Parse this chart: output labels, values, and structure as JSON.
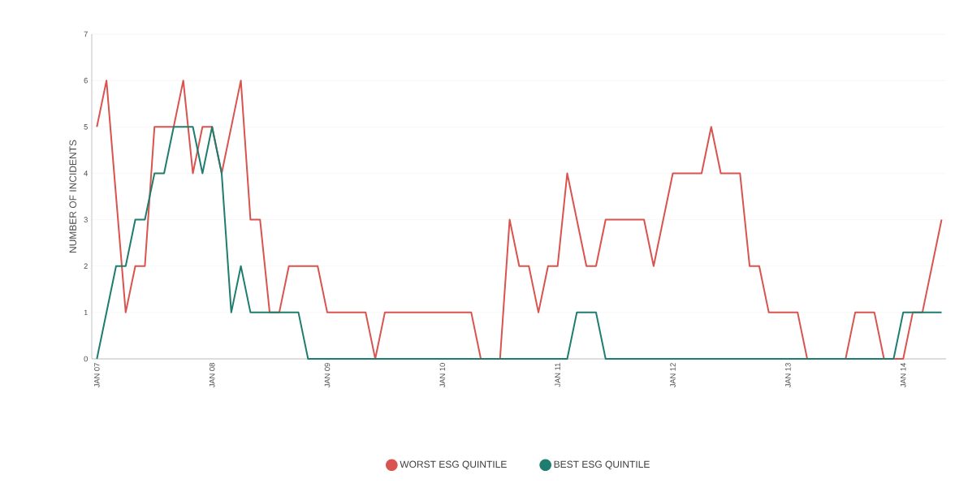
{
  "chart_data": {
    "type": "line",
    "ylabel": "NUMBER OF INCIDENTS",
    "xlim": [
      "2006-12-15",
      "2014-05-15"
    ],
    "ylim": [
      0,
      7
    ],
    "yticks": [
      0,
      1,
      2,
      3,
      4,
      5,
      6,
      7
    ],
    "xticks": [
      {
        "value": "2007-01",
        "label": "JAN 07"
      },
      {
        "value": "2008-01",
        "label": "JAN 08"
      },
      {
        "value": "2009-01",
        "label": "JAN 09"
      },
      {
        "value": "2010-01",
        "label": "JAN 10"
      },
      {
        "value": "2011-01",
        "label": "JAN 11"
      },
      {
        "value": "2012-01",
        "label": "JAN 12"
      },
      {
        "value": "2013-01",
        "label": "JAN 13"
      },
      {
        "value": "2014-01",
        "label": "JAN 14"
      }
    ],
    "grid": "y",
    "legend": "bottom",
    "marker": "none",
    "line_style": "solid",
    "series": [
      {
        "name": "WORST ESG QUINTILE",
        "color": "#d9534f",
        "x": [
          "2007-01",
          "2007-02",
          "2007-04",
          "2007-05",
          "2007-06",
          "2007-07",
          "2007-09",
          "2007-10",
          "2007-11",
          "2007-12",
          "2008-01",
          "2008-02",
          "2008-04",
          "2008-05",
          "2008-06",
          "2008-07",
          "2008-08",
          "2008-09",
          "2008-12",
          "2009-01",
          "2009-05",
          "2009-06",
          "2009-07",
          "2010-04",
          "2010-05",
          "2010-07",
          "2010-08",
          "2010-09",
          "2010-10",
          "2010-11",
          "2010-12",
          "2011-01",
          "2011-02",
          "2011-04",
          "2011-05",
          "2011-06",
          "2011-10",
          "2011-11",
          "2012-01",
          "2012-04",
          "2012-05",
          "2012-06",
          "2012-08",
          "2012-09",
          "2012-10",
          "2012-11",
          "2013-02",
          "2013-03",
          "2013-07",
          "2013-08",
          "2013-10",
          "2013-11",
          "2014-01",
          "2014-02",
          "2014-03",
          "2014-05"
        ],
        "values": [
          5,
          6,
          1,
          2,
          2,
          5,
          5,
          6,
          4,
          5,
          5,
          4,
          6,
          3,
          3,
          1,
          1,
          2,
          2,
          1,
          1,
          0,
          1,
          1,
          0,
          0,
          3,
          2,
          2,
          1,
          2,
          2,
          4,
          2,
          2,
          3,
          3,
          2,
          4,
          4,
          5,
          4,
          4,
          2,
          2,
          1,
          1,
          0,
          0,
          1,
          1,
          0,
          0,
          1,
          1,
          3
        ]
      },
      {
        "name": "BEST ESG QUINTILE",
        "color": "#1e7d6e",
        "x": [
          "2007-01",
          "2007-03",
          "2007-04",
          "2007-05",
          "2007-06",
          "2007-07",
          "2007-08",
          "2007-09",
          "2007-11",
          "2007-12",
          "2008-01",
          "2008-02",
          "2008-03",
          "2008-04",
          "2008-05",
          "2008-10",
          "2008-11",
          "2011-02",
          "2011-03",
          "2011-05",
          "2011-06",
          "2013-12",
          "2014-01",
          "2014-05"
        ],
        "values": [
          0,
          2,
          2,
          3,
          3,
          4,
          4,
          5,
          5,
          4,
          5,
          4,
          1,
          2,
          1,
          1,
          0,
          0,
          1,
          1,
          0,
          0,
          1,
          1
        ]
      }
    ]
  }
}
